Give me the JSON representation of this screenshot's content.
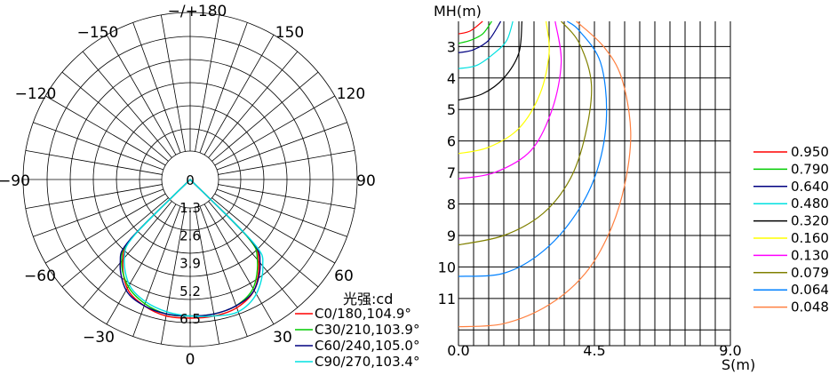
{
  "chart_data": [
    {
      "type": "polar",
      "unit_label": "光强:cd",
      "angle_labels": [
        "−/+180",
        "−150",
        "150",
        "−120",
        "120",
        "−90",
        "90",
        "−60",
        "60",
        "−30",
        "30",
        "0"
      ],
      "radial_ticks": [
        "0",
        "1.3",
        "2.6",
        "3.9",
        "5.2",
        "6.5"
      ],
      "radial_max": 6.5,
      "series": [
        {
          "name": "C0/180,104.9°",
          "color": "#ff0000",
          "angles": [
            -52,
            -45,
            -40,
            -30,
            -20,
            -10,
            0,
            10,
            20,
            30,
            40,
            45,
            52
          ],
          "values": [
            0,
            3.8,
            4.9,
            5.9,
            6.3,
            6.5,
            6.5,
            6.5,
            6.4,
            6.0,
            5.0,
            3.9,
            0
          ]
        },
        {
          "name": "C30/210,103.9°",
          "color": "#00cc00",
          "angles": [
            -52,
            -45,
            -40,
            -30,
            -20,
            -10,
            0,
            10,
            20,
            30,
            40,
            45,
            52
          ],
          "values": [
            0,
            3.9,
            5.0,
            5.8,
            6.2,
            6.4,
            6.4,
            6.4,
            6.3,
            5.9,
            4.9,
            3.8,
            0
          ]
        },
        {
          "name": "C60/240,105.0°",
          "color": "#000080",
          "angles": [
            -52,
            -45,
            -40,
            -30,
            -20,
            -10,
            0,
            10,
            20,
            30,
            40,
            45,
            52
          ],
          "values": [
            0,
            4.0,
            5.1,
            6.0,
            6.3,
            6.4,
            6.4,
            6.4,
            6.3,
            6.0,
            5.1,
            4.0,
            0
          ]
        },
        {
          "name": "C90/270,103.4°",
          "color": "#00e0e0",
          "angles": [
            -52,
            -45,
            -40,
            -30,
            -20,
            -10,
            0,
            10,
            20,
            30,
            40,
            45,
            52
          ],
          "values": [
            0,
            3.7,
            4.8,
            5.7,
            6.1,
            6.3,
            6.4,
            6.5,
            6.6,
            6.2,
            5.3,
            4.2,
            0
          ]
        }
      ]
    },
    {
      "type": "line",
      "ylabel": "MH(m)",
      "xlabel": "S(m)",
      "xlim": [
        0,
        9
      ],
      "ylim": [
        2.2,
        12.5
      ],
      "x_tick_labels": [
        "0.0",
        "4.5",
        "9.0"
      ],
      "y_tick_labels": [
        "3",
        "4",
        "5",
        "6",
        "7",
        "8",
        "9",
        "10",
        "11"
      ],
      "series": [
        {
          "name": "0.950",
          "color": "#ff0000",
          "points": [
            [
              0,
              2.6
            ],
            [
              0.4,
              2.5
            ],
            [
              0.8,
              2.2
            ]
          ]
        },
        {
          "name": "0.790",
          "color": "#00cc00",
          "points": [
            [
              0,
              2.9
            ],
            [
              0.4,
              2.8
            ],
            [
              0.8,
              2.6
            ],
            [
              1.1,
              2.2
            ]
          ]
        },
        {
          "name": "0.640",
          "color": "#000080",
          "points": [
            [
              0,
              3.2
            ],
            [
              0.5,
              3.1
            ],
            [
              1.0,
              2.8
            ],
            [
              1.4,
              2.2
            ]
          ]
        },
        {
          "name": "0.480",
          "color": "#00e0e0",
          "points": [
            [
              0,
              3.7
            ],
            [
              0.6,
              3.6
            ],
            [
              1.2,
              3.2
            ],
            [
              1.6,
              2.8
            ],
            [
              1.8,
              2.2
            ]
          ]
        },
        {
          "name": "0.320",
          "color": "#000000",
          "points": [
            [
              0,
              4.7
            ],
            [
              0.8,
              4.5
            ],
            [
              1.5,
              4.0
            ],
            [
              2.0,
              3.2
            ],
            [
              2.1,
              2.2
            ]
          ]
        },
        {
          "name": "0.160",
          "color": "#ffff00",
          "points": [
            [
              0,
              6.4
            ],
            [
              1.0,
              6.2
            ],
            [
              2.0,
              5.6
            ],
            [
              2.7,
              4.5
            ],
            [
              3.0,
              3.2
            ],
            [
              2.9,
              2.2
            ]
          ]
        },
        {
          "name": "0.130",
          "color": "#ff00ff",
          "points": [
            [
              0,
              7.2
            ],
            [
              1.2,
              7.0
            ],
            [
              2.4,
              6.3
            ],
            [
              3.1,
              5.0
            ],
            [
              3.4,
              3.5
            ],
            [
              3.2,
              2.2
            ]
          ]
        },
        {
          "name": "0.079",
          "color": "#808000",
          "points": [
            [
              0,
              9.3
            ],
            [
              1.5,
              9.0
            ],
            [
              2.8,
              8.3
            ],
            [
              3.7,
              7.2
            ],
            [
              4.2,
              5.8
            ],
            [
              4.4,
              4.2
            ],
            [
              4.0,
              2.9
            ],
            [
              3.4,
              2.2
            ]
          ]
        },
        {
          "name": "0.064",
          "color": "#0080ff",
          "points": [
            [
              0,
              10.3
            ],
            [
              1.5,
              10.2
            ],
            [
              2.8,
              9.5
            ],
            [
              3.9,
              8.3
            ],
            [
              4.6,
              6.9
            ],
            [
              4.9,
              5.2
            ],
            [
              4.7,
              3.5
            ],
            [
              4.0,
              2.5
            ],
            [
              3.6,
              2.2
            ]
          ]
        },
        {
          "name": "0.048",
          "color": "#ff8040",
          "points": [
            [
              0,
              11.9
            ],
            [
              1.5,
              11.8
            ],
            [
              3.0,
              11.2
            ],
            [
              4.2,
              10.2
            ],
            [
              5.0,
              8.9
            ],
            [
              5.5,
              7.4
            ],
            [
              5.7,
              5.7
            ],
            [
              5.4,
              4.0
            ],
            [
              4.8,
              3.0
            ],
            [
              3.9,
              2.2
            ]
          ]
        }
      ]
    }
  ]
}
